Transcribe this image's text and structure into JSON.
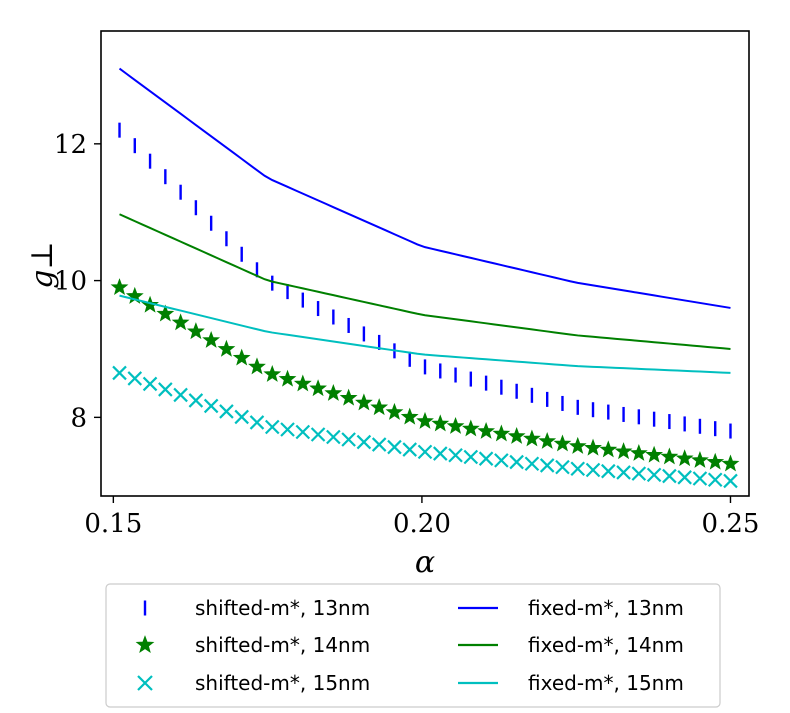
{
  "chart_data": {
    "type": "line",
    "title": "",
    "xlabel": "α",
    "ylabel": "g⊥",
    "xlim": [
      0.148,
      0.253
    ],
    "ylim": [
      6.85,
      13.65
    ],
    "xticks": [
      0.15,
      0.2,
      0.25
    ],
    "xtick_labels": [
      "0.15",
      "0.20",
      "0.25"
    ],
    "yticks": [
      8,
      10,
      12
    ],
    "ytick_labels": [
      "8",
      "10",
      "12"
    ],
    "grid": false,
    "legend_position": "bottom-outside",
    "series": [
      {
        "name": "shifted-m*, 13nm",
        "style": "marker",
        "marker": "vline",
        "color": "#0000ff",
        "x": [
          0.151,
          0.175,
          0.2,
          0.225,
          0.25
        ],
        "y": [
          12.2,
          10.0,
          8.75,
          8.15,
          7.8
        ]
      },
      {
        "name": "shifted-m*, 14nm",
        "style": "marker",
        "marker": "star",
        "color": "#008000",
        "x": [
          0.151,
          0.175,
          0.2,
          0.225,
          0.25
        ],
        "y": [
          9.9,
          8.65,
          7.95,
          7.58,
          7.32
        ]
      },
      {
        "name": "shifted-m*, 15nm",
        "style": "marker",
        "marker": "x",
        "color": "#00bfbf",
        "x": [
          0.151,
          0.175,
          0.2,
          0.225,
          0.25
        ],
        "y": [
          8.65,
          7.87,
          7.5,
          7.25,
          7.07
        ]
      },
      {
        "name": "fixed-m*, 13nm",
        "style": "line",
        "color": "#0000ff",
        "x": [
          0.151,
          0.175,
          0.2,
          0.225,
          0.25
        ],
        "y": [
          13.1,
          11.5,
          10.5,
          9.97,
          9.6
        ]
      },
      {
        "name": "fixed-m*, 14nm",
        "style": "line",
        "color": "#008000",
        "x": [
          0.151,
          0.175,
          0.2,
          0.225,
          0.25
        ],
        "y": [
          10.97,
          10.0,
          9.5,
          9.2,
          9.0
        ]
      },
      {
        "name": "fixed-m*, 15nm",
        "style": "line",
        "color": "#00bfbf",
        "x": [
          0.151,
          0.175,
          0.2,
          0.225,
          0.25
        ],
        "y": [
          9.78,
          9.25,
          8.92,
          8.75,
          8.65
        ]
      }
    ]
  },
  "legend": {
    "items": [
      {
        "label": "shifted-m*, 13nm",
        "marker": "vline",
        "color": "#0000ff"
      },
      {
        "label": "shifted-m*, 14nm",
        "marker": "star",
        "color": "#008000"
      },
      {
        "label": "shifted-m*, 15nm",
        "marker": "x",
        "color": "#00bfbf"
      },
      {
        "label": "fixed-m*, 13nm",
        "marker": "line",
        "color": "#0000ff"
      },
      {
        "label": "fixed-m*, 14nm",
        "marker": "line",
        "color": "#008000"
      },
      {
        "label": "fixed-m*, 15nm",
        "marker": "line",
        "color": "#00bfbf"
      }
    ]
  }
}
